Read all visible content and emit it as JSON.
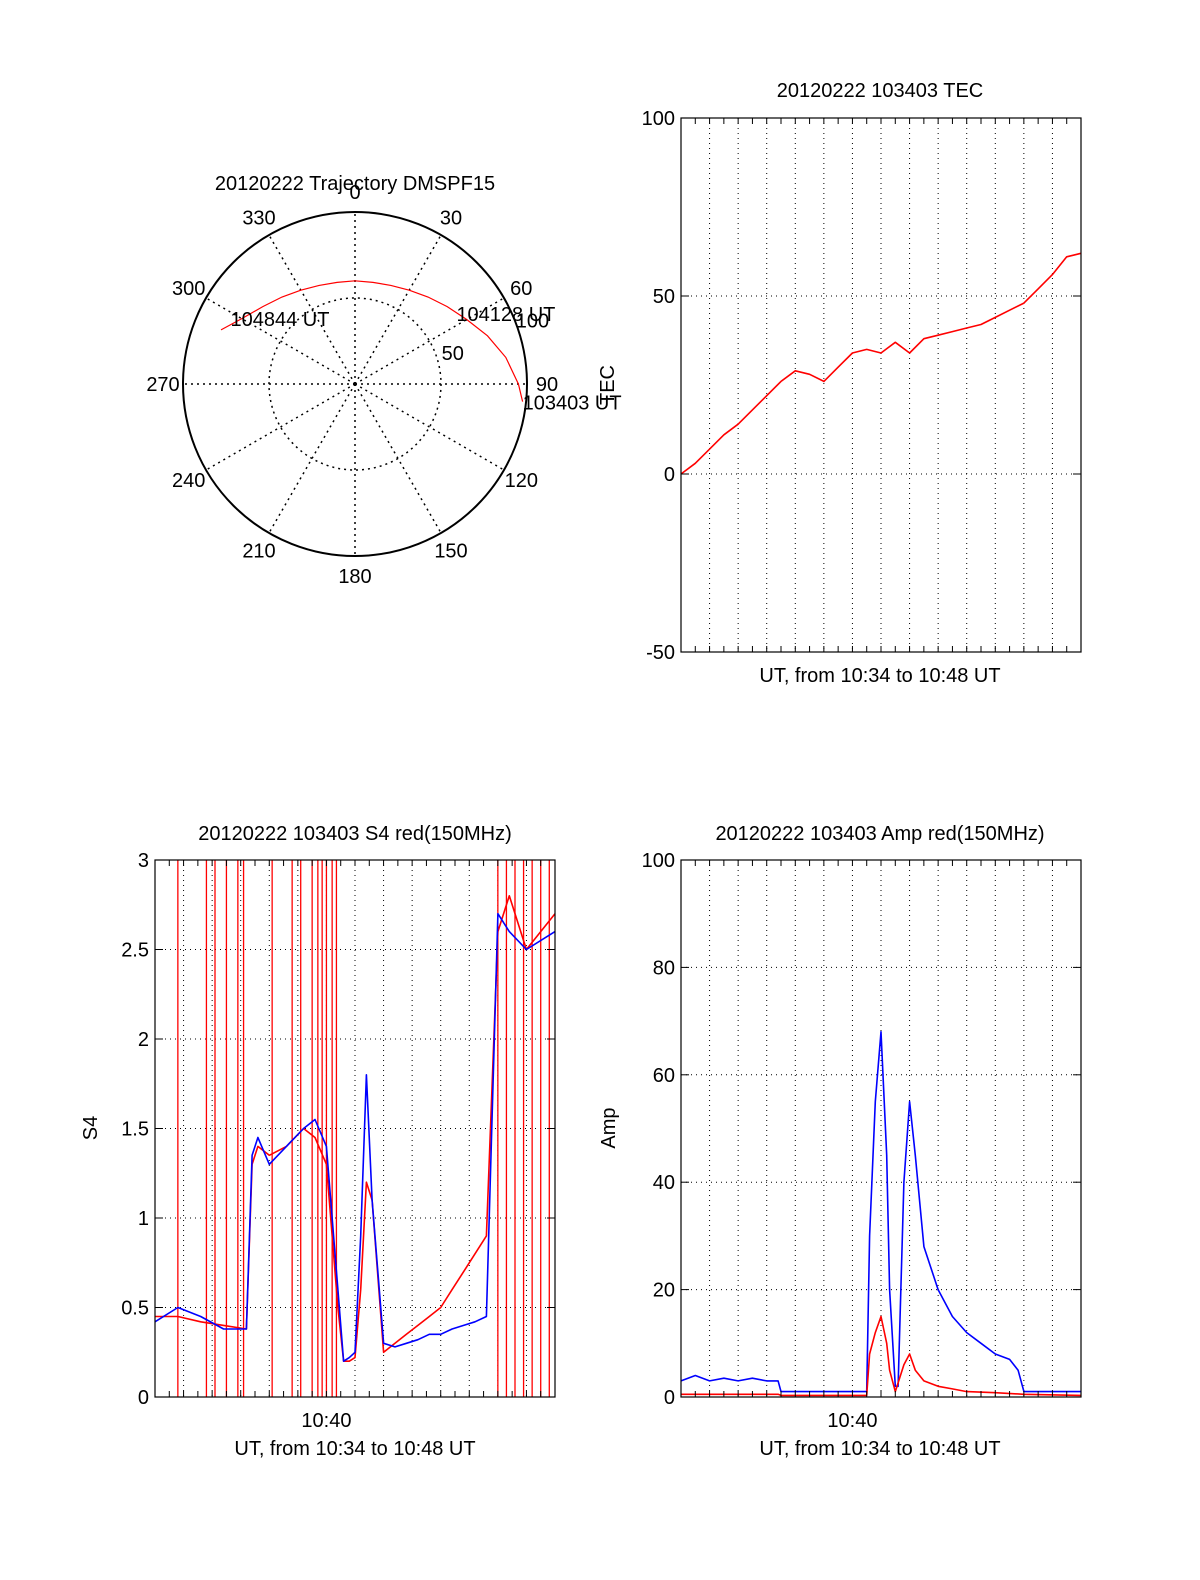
{
  "colors": {
    "red": "#ff0000",
    "blue": "#0000ff",
    "axis": "#000000",
    "grid": "#000000"
  },
  "chart_data": [
    {
      "type": "polar",
      "title": "20120222 Trajectory DMSPF15",
      "angle_ticks": [
        "0",
        "30",
        "60",
        "90",
        "120",
        "150",
        "180",
        "210",
        "240",
        "270",
        "300",
        "330"
      ],
      "angle_values": [
        0,
        30,
        60,
        90,
        120,
        150,
        180,
        210,
        240,
        270,
        300,
        330
      ],
      "radial_ticks": [
        "50",
        "100"
      ],
      "radial_values": [
        50,
        100
      ],
      "grid": true,
      "series": [
        {
          "color": "red",
          "points": [
            [
              292,
              84
            ],
            [
              300,
              76
            ],
            [
              310,
              70
            ],
            [
              320,
              66
            ],
            [
              330,
              63
            ],
            [
              340,
              61
            ],
            [
              350,
              60
            ],
            [
              0,
              60
            ],
            [
              10,
              60
            ],
            [
              20,
              61
            ],
            [
              30,
              63
            ],
            [
              40,
              66
            ],
            [
              50,
              70
            ],
            [
              60,
              75
            ],
            [
              70,
              82
            ],
            [
              80,
              89
            ],
            [
              90,
              95
            ],
            [
              96,
              98
            ]
          ]
        }
      ],
      "annotations": [
        {
          "text": "104844 UT",
          "angle": 298,
          "r": 82
        },
        {
          "text": "104128 UT",
          "angle": 55,
          "r": 72
        },
        {
          "text": "103403 UT",
          "angle": 96,
          "r": 98
        }
      ]
    },
    {
      "type": "line",
      "title": "20120222 103403 TEC",
      "xlabel": "UT, from 10:34 to 10:48 UT",
      "ylabel": "TEC",
      "xlim": [
        0,
        14
      ],
      "ylim": [
        -50,
        100
      ],
      "y_ticks": [
        "-50",
        "0",
        "50",
        "100"
      ],
      "y_tick_values": [
        -50,
        0,
        50,
        100
      ],
      "x_ticks": [],
      "grid": true,
      "series": [
        {
          "color": "red",
          "x": [
            0,
            0.5,
            1,
            1.5,
            2,
            2.5,
            3,
            3.5,
            4,
            4.5,
            5,
            5.5,
            6,
            6.5,
            7,
            7.5,
            8,
            8.5,
            9,
            9.5,
            10,
            10.5,
            11,
            11.5,
            12,
            12.5,
            13,
            13.5,
            14
          ],
          "y": [
            0,
            3,
            7,
            11,
            14,
            18,
            22,
            26,
            29,
            28,
            26,
            30,
            34,
            35,
            34,
            37,
            34,
            38,
            39,
            40,
            41,
            42,
            44,
            46,
            48,
            52,
            56,
            61,
            62
          ]
        }
      ]
    },
    {
      "type": "line",
      "title": "20120222 103403 S4 red(150MHz)",
      "xlabel": "UT, from 10:34 to 10:48 UT",
      "ylabel": "S4",
      "xlim": [
        0,
        14
      ],
      "ylim": [
        0,
        3
      ],
      "y_ticks": [
        "0",
        "0.5",
        "1",
        "1.5",
        "2",
        "2.5",
        "3"
      ],
      "y_tick_values": [
        0,
        0.5,
        1,
        1.5,
        2,
        2.5,
        3
      ],
      "x_ticks": [
        "10:40"
      ],
      "x_tick_values": [
        6
      ],
      "grid": true,
      "series": [
        {
          "color": "red",
          "x": [
            0,
            0.8,
            1.6,
            2.4,
            3.2,
            3.4,
            3.6,
            4.0,
            4.6,
            5.2,
            5.6,
            6.0,
            6.4,
            6.6,
            6.8,
            7.0,
            7.2,
            7.4,
            7.6,
            8.0,
            8.4,
            8.8,
            9.2,
            9.6,
            10.0,
            10.4,
            10.8,
            11.2,
            11.6,
            12.0,
            12.4,
            13.0,
            14.0
          ],
          "y": [
            0.45,
            0.45,
            0.42,
            0.4,
            0.38,
            1.3,
            1.4,
            1.35,
            1.4,
            1.5,
            1.45,
            1.3,
            0.5,
            0.2,
            0.2,
            0.22,
            0.6,
            1.2,
            1.1,
            0.25,
            0.3,
            0.35,
            0.4,
            0.45,
            0.5,
            0.6,
            0.7,
            0.8,
            0.9,
            2.6,
            2.8,
            2.5,
            2.7
          ]
        },
        {
          "color": "blue",
          "x": [
            0,
            0.8,
            1.6,
            2.4,
            3.2,
            3.4,
            3.6,
            4.0,
            4.6,
            5.2,
            5.6,
            6.0,
            6.4,
            6.6,
            6.8,
            7.0,
            7.2,
            7.4,
            7.6,
            8.0,
            8.4,
            8.8,
            9.2,
            9.6,
            10.0,
            10.4,
            10.8,
            11.2,
            11.6,
            12.0,
            12.4,
            13.0,
            14.0
          ],
          "y": [
            0.42,
            0.5,
            0.45,
            0.38,
            0.38,
            1.35,
            1.45,
            1.3,
            1.4,
            1.5,
            1.55,
            1.4,
            0.6,
            0.2,
            0.22,
            0.25,
            0.9,
            1.8,
            1.1,
            0.3,
            0.28,
            0.3,
            0.32,
            0.35,
            0.35,
            0.38,
            0.4,
            0.42,
            0.45,
            2.7,
            2.6,
            2.5,
            2.6
          ]
        }
      ],
      "spikes": {
        "color": "red",
        "x": [
          0.8,
          1.8,
          2.1,
          2.5,
          2.9,
          3.1,
          4.1,
          4.8,
          5.1,
          5.5,
          5.7,
          5.85,
          6.0,
          6.2,
          6.35,
          12.0,
          12.3,
          12.6,
          12.9,
          13.2,
          13.5,
          13.8
        ]
      }
    },
    {
      "type": "line",
      "title": "20120222 103403 Amp red(150MHz)",
      "xlabel": "UT, from 10:34 to 10:48 UT",
      "ylabel": "Amp",
      "xlim": [
        0,
        14
      ],
      "ylim": [
        0,
        100
      ],
      "y_ticks": [
        "0",
        "20",
        "40",
        "60",
        "80",
        "100"
      ],
      "y_tick_values": [
        0,
        20,
        40,
        60,
        80,
        100
      ],
      "x_ticks": [
        "10:40"
      ],
      "x_tick_values": [
        6
      ],
      "grid": true,
      "series": [
        {
          "color": "blue",
          "x": [
            0,
            0.5,
            1,
            1.5,
            2,
            2.5,
            3,
            3.4,
            3.5,
            4,
            5,
            6,
            6.5,
            6.6,
            6.8,
            7.0,
            7.2,
            7.3,
            7.5,
            7.6,
            7.8,
            8.0,
            8.2,
            8.5,
            9.0,
            9.5,
            10.0,
            10.5,
            11.0,
            11.5,
            11.8,
            12.0,
            13.0,
            14.0
          ],
          "y": [
            3,
            4,
            3,
            3.5,
            3,
            3.5,
            3,
            3,
            1,
            1,
            1,
            1,
            1,
            30,
            55,
            68,
            45,
            20,
            2,
            2,
            40,
            55,
            45,
            28,
            20,
            15,
            12,
            10,
            8,
            7,
            5,
            1,
            1,
            1
          ]
        },
        {
          "color": "red",
          "x": [
            0,
            3.4,
            3.5,
            6,
            6.5,
            6.6,
            6.8,
            7.0,
            7.2,
            7.3,
            7.5,
            7.8,
            8.0,
            8.2,
            8.5,
            9.0,
            9.5,
            10.0,
            11.0,
            12.0,
            14.0
          ],
          "y": [
            0.5,
            0.5,
            0.3,
            0.3,
            0.3,
            8,
            12,
            15,
            10,
            5,
            1,
            6,
            8,
            5,
            3,
            2,
            1.5,
            1,
            0.8,
            0.5,
            0.3
          ]
        }
      ]
    }
  ]
}
